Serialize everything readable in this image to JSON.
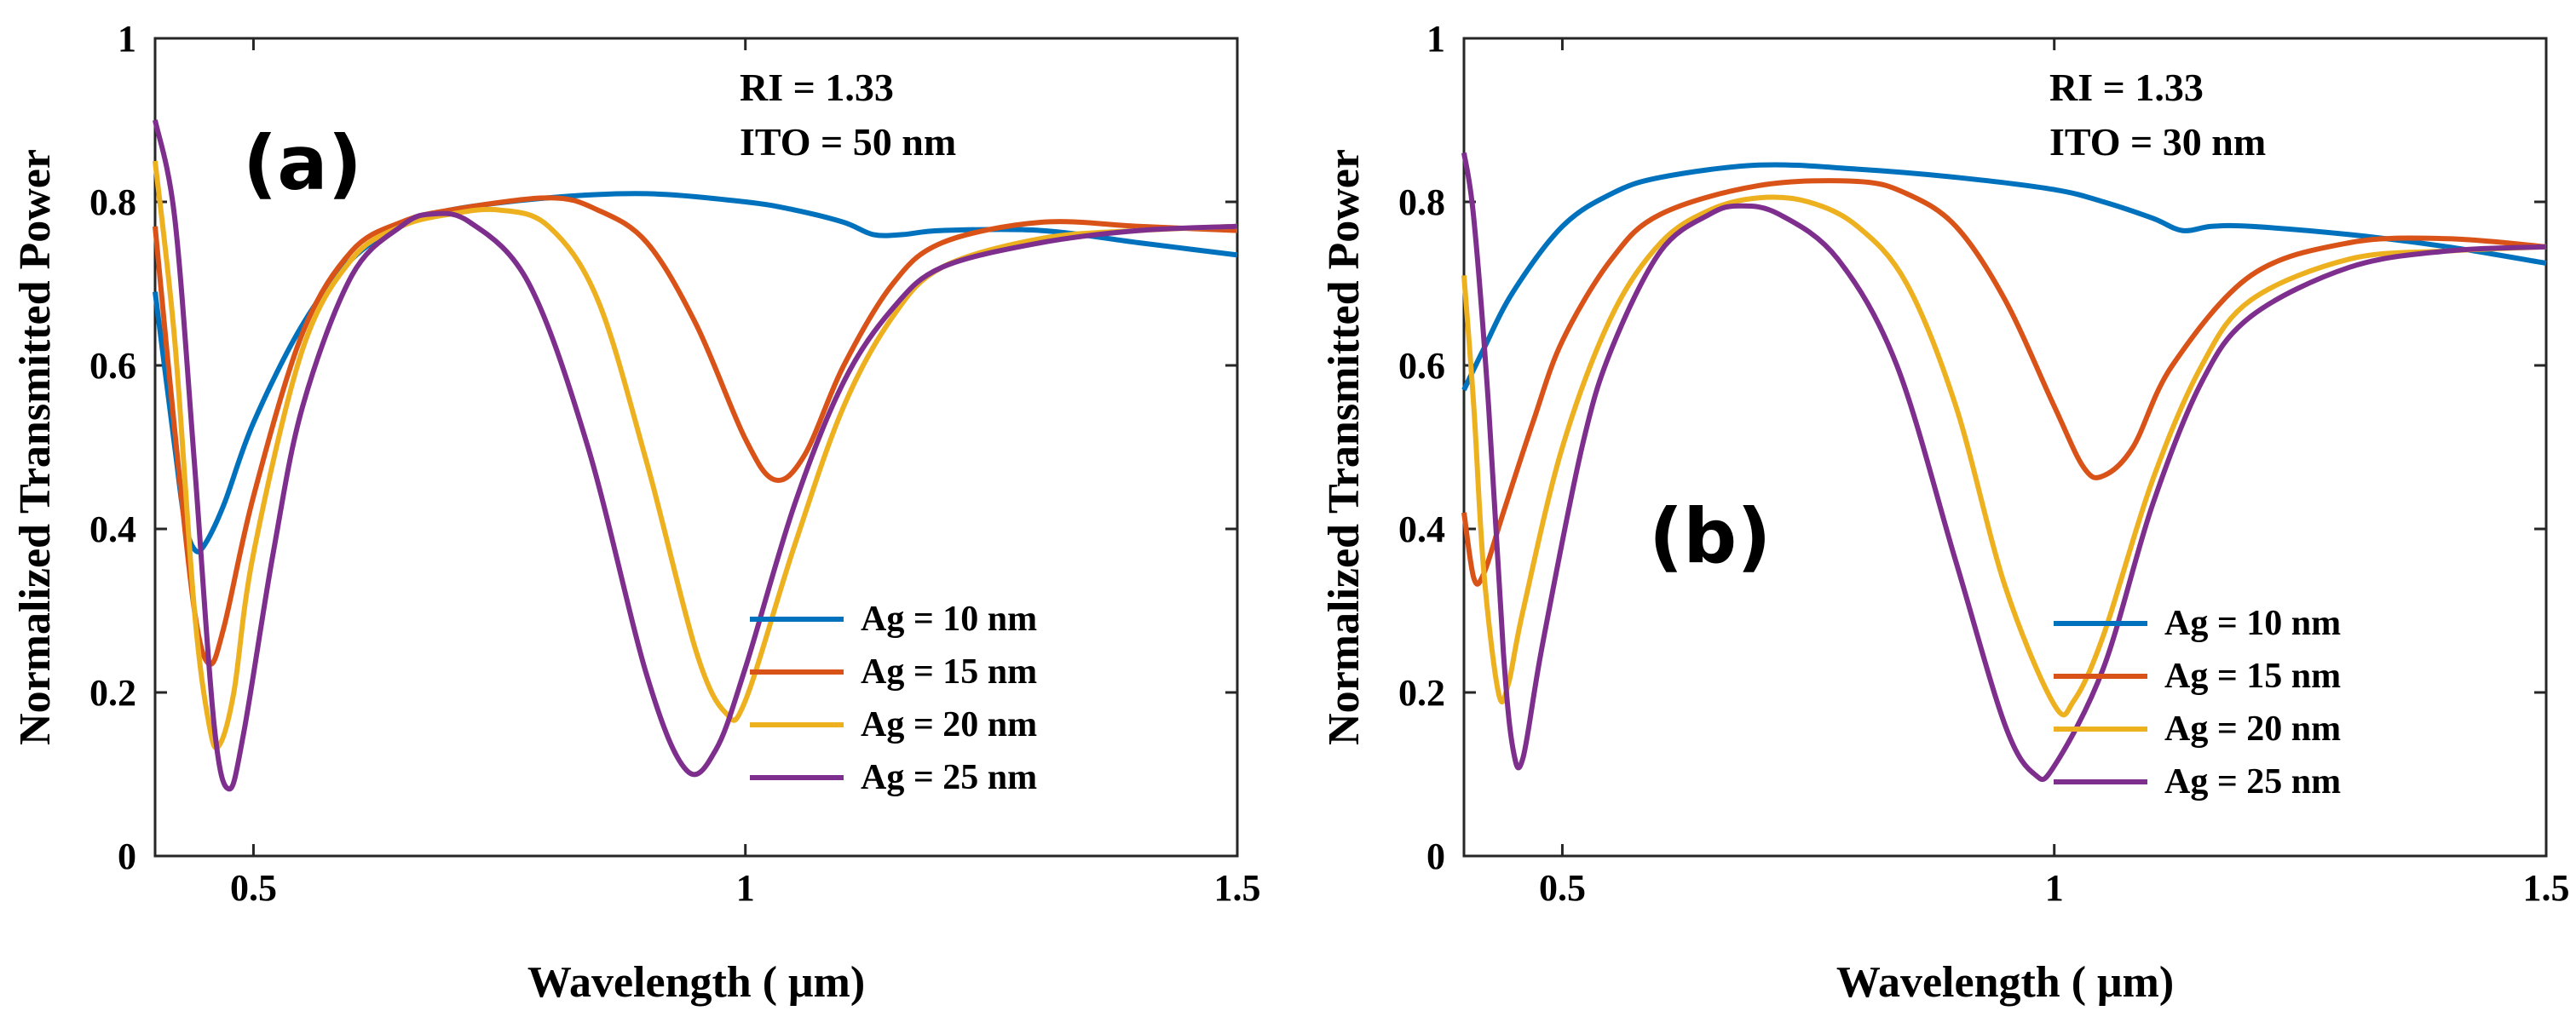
{
  "chart_data": [
    {
      "type": "line",
      "panel_label": "(a)",
      "annotation": [
        "RI = 1.33",
        "ITO = 50 nm"
      ],
      "xlabel": "Wavelength ( μm)",
      "ylabel": "Normalized Transmitted Power",
      "xlim": [
        0.4,
        1.5
      ],
      "ylim": [
        0,
        1
      ],
      "xticks": [
        0.5,
        1,
        1.5
      ],
      "xtick_labels": [
        "0.5",
        "1",
        "1.5"
      ],
      "yticks": [
        0,
        0.2,
        0.4,
        0.6,
        0.8,
        1
      ],
      "ytick_labels": [
        "0",
        "0.2",
        "0.4",
        "0.6",
        "0.8",
        "1"
      ],
      "legend_position": "bottom-right",
      "series": [
        {
          "name": "Ag = 10 nm",
          "color": "#0072BD",
          "points": [
            [
              0.4,
              0.69
            ],
            [
              0.42,
              0.5
            ],
            [
              0.43,
              0.41
            ],
            [
              0.44,
              0.375
            ],
            [
              0.45,
              0.38
            ],
            [
              0.47,
              0.43
            ],
            [
              0.5,
              0.53
            ],
            [
              0.55,
              0.65
            ],
            [
              0.6,
              0.73
            ],
            [
              0.65,
              0.77
            ],
            [
              0.7,
              0.79
            ],
            [
              0.8,
              0.805
            ],
            [
              0.9,
              0.81
            ],
            [
              1.0,
              0.8
            ],
            [
              1.05,
              0.79
            ],
            [
              1.1,
              0.775
            ],
            [
              1.13,
              0.76
            ],
            [
              1.16,
              0.76
            ],
            [
              1.2,
              0.765
            ],
            [
              1.3,
              0.765
            ],
            [
              1.4,
              0.75
            ],
            [
              1.5,
              0.735
            ]
          ]
        },
        {
          "name": "Ag = 15 nm",
          "color": "#D95319",
          "points": [
            [
              0.4,
              0.77
            ],
            [
              0.42,
              0.52
            ],
            [
              0.44,
              0.3
            ],
            [
              0.455,
              0.235
            ],
            [
              0.47,
              0.28
            ],
            [
              0.5,
              0.44
            ],
            [
              0.55,
              0.64
            ],
            [
              0.6,
              0.74
            ],
            [
              0.65,
              0.775
            ],
            [
              0.7,
              0.79
            ],
            [
              0.8,
              0.805
            ],
            [
              0.85,
              0.79
            ],
            [
              0.9,
              0.75
            ],
            [
              0.95,
              0.65
            ],
            [
              1.0,
              0.51
            ],
            [
              1.03,
              0.46
            ],
            [
              1.06,
              0.49
            ],
            [
              1.1,
              0.6
            ],
            [
              1.15,
              0.7
            ],
            [
              1.2,
              0.75
            ],
            [
              1.3,
              0.775
            ],
            [
              1.4,
              0.77
            ],
            [
              1.5,
              0.765
            ]
          ]
        },
        {
          "name": "Ag = 20 nm",
          "color": "#EDB120",
          "points": [
            [
              0.4,
              0.85
            ],
            [
              0.42,
              0.63
            ],
            [
              0.44,
              0.3
            ],
            [
              0.455,
              0.16
            ],
            [
              0.465,
              0.135
            ],
            [
              0.48,
              0.2
            ],
            [
              0.5,
              0.37
            ],
            [
              0.55,
              0.62
            ],
            [
              0.6,
              0.73
            ],
            [
              0.65,
              0.77
            ],
            [
              0.7,
              0.785
            ],
            [
              0.75,
              0.79
            ],
            [
              0.8,
              0.77
            ],
            [
              0.85,
              0.68
            ],
            [
              0.9,
              0.48
            ],
            [
              0.95,
              0.25
            ],
            [
              0.98,
              0.175
            ],
            [
              1.0,
              0.19
            ],
            [
              1.05,
              0.38
            ],
            [
              1.1,
              0.55
            ],
            [
              1.15,
              0.66
            ],
            [
              1.2,
              0.72
            ],
            [
              1.3,
              0.755
            ],
            [
              1.4,
              0.765
            ],
            [
              1.5,
              0.77
            ]
          ]
        },
        {
          "name": "Ag = 25 nm",
          "color": "#7E2F8E",
          "points": [
            [
              0.4,
              0.9
            ],
            [
              0.42,
              0.78
            ],
            [
              0.44,
              0.48
            ],
            [
              0.46,
              0.16
            ],
            [
              0.475,
              0.082
            ],
            [
              0.49,
              0.15
            ],
            [
              0.52,
              0.37
            ],
            [
              0.55,
              0.55
            ],
            [
              0.6,
              0.71
            ],
            [
              0.65,
              0.77
            ],
            [
              0.68,
              0.785
            ],
            [
              0.72,
              0.775
            ],
            [
              0.78,
              0.7
            ],
            [
              0.84,
              0.5
            ],
            [
              0.9,
              0.22
            ],
            [
              0.94,
              0.105
            ],
            [
              0.97,
              0.13
            ],
            [
              1.0,
              0.23
            ],
            [
              1.05,
              0.43
            ],
            [
              1.1,
              0.58
            ],
            [
              1.15,
              0.67
            ],
            [
              1.2,
              0.72
            ],
            [
              1.3,
              0.75
            ],
            [
              1.4,
              0.765
            ],
            [
              1.5,
              0.77
            ]
          ]
        }
      ]
    },
    {
      "type": "line",
      "panel_label": "(b)",
      "annotation": [
        "RI = 1.33",
        "ITO = 30 nm"
      ],
      "xlabel": "Wavelength ( μm)",
      "ylabel": "Normalized Transmitted Power",
      "xlim": [
        0.4,
        1.5
      ],
      "ylim": [
        0,
        1
      ],
      "xticks": [
        0.5,
        1,
        1.5
      ],
      "xtick_labels": [
        "0.5",
        "1",
        "1.5"
      ],
      "yticks": [
        0,
        0.2,
        0.4,
        0.6,
        0.8,
        1
      ],
      "ytick_labels": [
        "0",
        "0.2",
        "0.4",
        "0.6",
        "0.8",
        "1"
      ],
      "legend_position": "bottom-right",
      "series": [
        {
          "name": "Ag = 10 nm",
          "color": "#0072BD",
          "points": [
            [
              0.4,
              0.57
            ],
            [
              0.42,
              0.62
            ],
            [
              0.45,
              0.69
            ],
            [
              0.5,
              0.77
            ],
            [
              0.55,
              0.81
            ],
            [
              0.6,
              0.83
            ],
            [
              0.7,
              0.845
            ],
            [
              0.8,
              0.84
            ],
            [
              0.9,
              0.83
            ],
            [
              1.0,
              0.815
            ],
            [
              1.05,
              0.8
            ],
            [
              1.1,
              0.78
            ],
            [
              1.13,
              0.765
            ],
            [
              1.16,
              0.77
            ],
            [
              1.2,
              0.77
            ],
            [
              1.3,
              0.76
            ],
            [
              1.4,
              0.745
            ],
            [
              1.5,
              0.725
            ]
          ]
        },
        {
          "name": "Ag = 15 nm",
          "color": "#D95319",
          "points": [
            [
              0.4,
              0.42
            ],
            [
              0.41,
              0.34
            ],
            [
              0.42,
              0.345
            ],
            [
              0.44,
              0.42
            ],
            [
              0.47,
              0.53
            ],
            [
              0.5,
              0.63
            ],
            [
              0.55,
              0.73
            ],
            [
              0.6,
              0.785
            ],
            [
              0.7,
              0.82
            ],
            [
              0.8,
              0.825
            ],
            [
              0.85,
              0.81
            ],
            [
              0.9,
              0.77
            ],
            [
              0.95,
              0.68
            ],
            [
              1.0,
              0.55
            ],
            [
              1.03,
              0.475
            ],
            [
              1.05,
              0.465
            ],
            [
              1.08,
              0.5
            ],
            [
              1.12,
              0.6
            ],
            [
              1.2,
              0.71
            ],
            [
              1.3,
              0.75
            ],
            [
              1.4,
              0.755
            ],
            [
              1.5,
              0.745
            ]
          ]
        },
        {
          "name": "Ag = 20 nm",
          "color": "#EDB120",
          "points": [
            [
              0.4,
              0.71
            ],
            [
              0.41,
              0.55
            ],
            [
              0.42,
              0.35
            ],
            [
              0.435,
              0.2
            ],
            [
              0.445,
              0.21
            ],
            [
              0.46,
              0.3
            ],
            [
              0.5,
              0.5
            ],
            [
              0.55,
              0.66
            ],
            [
              0.6,
              0.75
            ],
            [
              0.65,
              0.79
            ],
            [
              0.7,
              0.805
            ],
            [
              0.75,
              0.8
            ],
            [
              0.8,
              0.77
            ],
            [
              0.85,
              0.7
            ],
            [
              0.9,
              0.55
            ],
            [
              0.95,
              0.33
            ],
            [
              1.0,
              0.185
            ],
            [
              1.02,
              0.19
            ],
            [
              1.05,
              0.27
            ],
            [
              1.1,
              0.46
            ],
            [
              1.15,
              0.6
            ],
            [
              1.2,
              0.68
            ],
            [
              1.3,
              0.73
            ],
            [
              1.4,
              0.74
            ],
            [
              1.5,
              0.745
            ]
          ]
        },
        {
          "name": "Ag = 25 nm",
          "color": "#7E2F8E",
          "points": [
            [
              0.4,
              0.86
            ],
            [
              0.41,
              0.78
            ],
            [
              0.425,
              0.55
            ],
            [
              0.44,
              0.25
            ],
            [
              0.45,
              0.13
            ],
            [
              0.46,
              0.12
            ],
            [
              0.48,
              0.26
            ],
            [
              0.52,
              0.5
            ],
            [
              0.55,
              0.62
            ],
            [
              0.6,
              0.74
            ],
            [
              0.65,
              0.785
            ],
            [
              0.68,
              0.795
            ],
            [
              0.72,
              0.785
            ],
            [
              0.78,
              0.73
            ],
            [
              0.84,
              0.6
            ],
            [
              0.9,
              0.36
            ],
            [
              0.95,
              0.16
            ],
            [
              0.98,
              0.1
            ],
            [
              1.0,
              0.11
            ],
            [
              1.05,
              0.23
            ],
            [
              1.1,
              0.43
            ],
            [
              1.15,
              0.58
            ],
            [
              1.2,
              0.66
            ],
            [
              1.3,
              0.72
            ],
            [
              1.4,
              0.74
            ],
            [
              1.5,
              0.745
            ]
          ]
        }
      ]
    }
  ]
}
